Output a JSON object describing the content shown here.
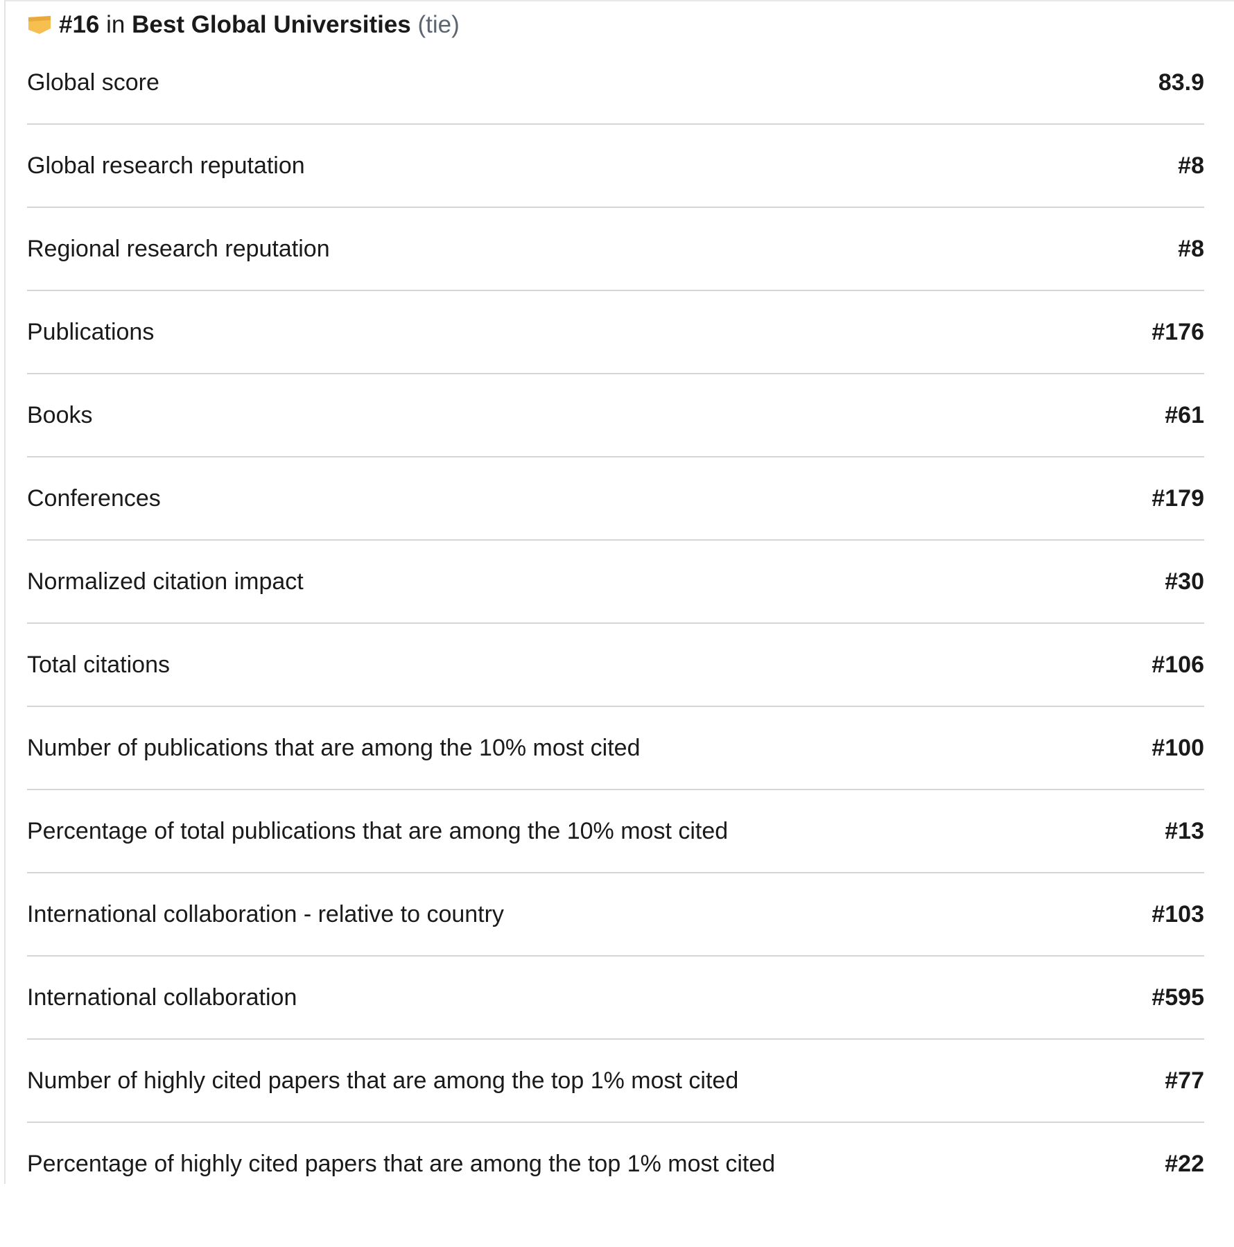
{
  "header": {
    "rank": "#16",
    "connector": "in",
    "list": "Best Global Universities",
    "note": "(tie)"
  },
  "rows": [
    {
      "label": "Global score",
      "value": "83.9"
    },
    {
      "label": "Global research reputation",
      "value": "#8"
    },
    {
      "label": "Regional research reputation",
      "value": "#8"
    },
    {
      "label": "Publications",
      "value": "#176"
    },
    {
      "label": "Books",
      "value": "#61"
    },
    {
      "label": "Conferences",
      "value": "#179"
    },
    {
      "label": "Normalized citation impact",
      "value": "#30"
    },
    {
      "label": "Total citations",
      "value": "#106"
    },
    {
      "label": "Number of publications that are among the 10% most cited",
      "value": "#100"
    },
    {
      "label": "Percentage of total publications that are among the 10% most cited",
      "value": "#13"
    },
    {
      "label": "International collaboration - relative to country",
      "value": "#103"
    },
    {
      "label": "International collaboration",
      "value": "#595"
    },
    {
      "label": "Number of highly cited papers that are among the top 1% most cited",
      "value": "#77"
    },
    {
      "label": "Percentage of highly cited papers that are among the top 1% most cited",
      "value": "#22"
    }
  ]
}
